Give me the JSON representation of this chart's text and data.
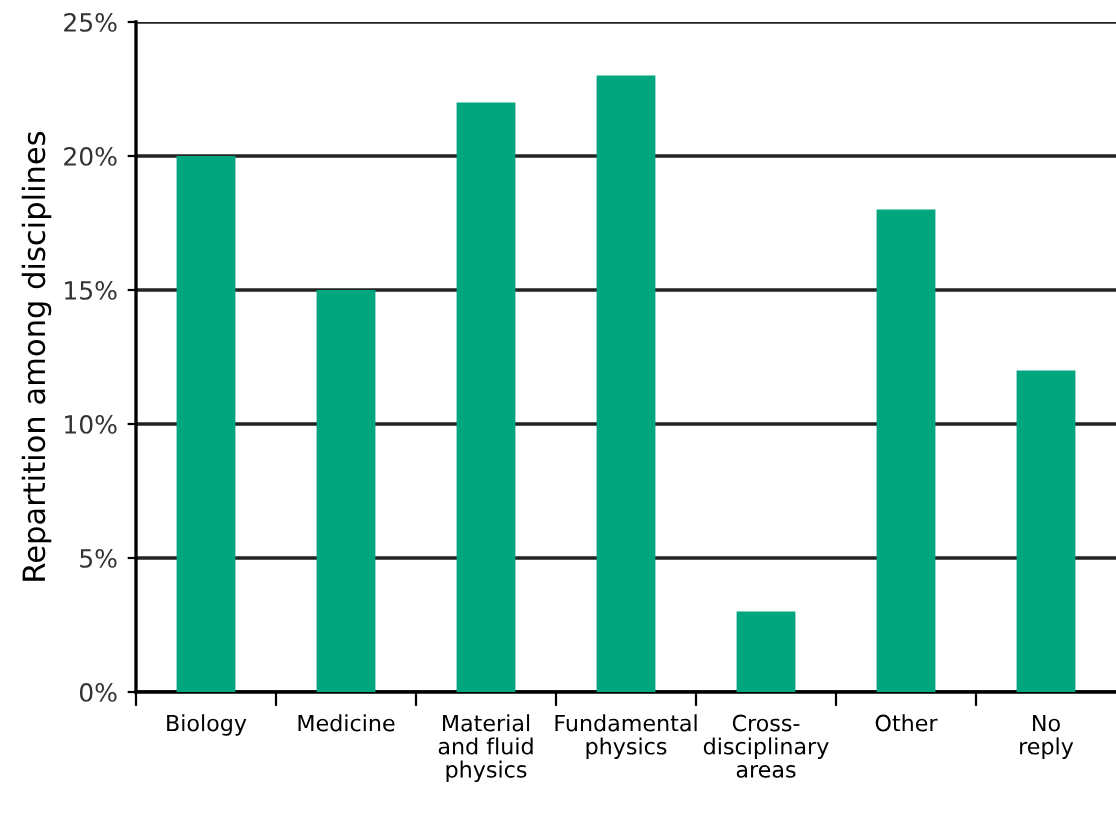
{
  "chart_data": {
    "type": "bar",
    "ylabel": "Repartition among disciplines",
    "categories": [
      "Biology",
      "Medicine",
      "Material\nand fluid\nphysics",
      "Fundamental\nphysics",
      "Cross-\ndisciplinary\nareas",
      "Other",
      "No\nreply"
    ],
    "values": [
      20,
      15,
      22,
      23,
      3,
      18,
      12
    ],
    "color": "#00a67e",
    "ylim": [
      0,
      25
    ],
    "yticks": [
      {
        "value": 0,
        "label": "0%"
      },
      {
        "value": 5,
        "label": "5%"
      },
      {
        "value": 10,
        "label": "10%"
      },
      {
        "value": 15,
        "label": "15%"
      },
      {
        "value": 20,
        "label": "20%"
      },
      {
        "value": 25,
        "label": "25%"
      }
    ],
    "grid": "y",
    "legend": false
  }
}
